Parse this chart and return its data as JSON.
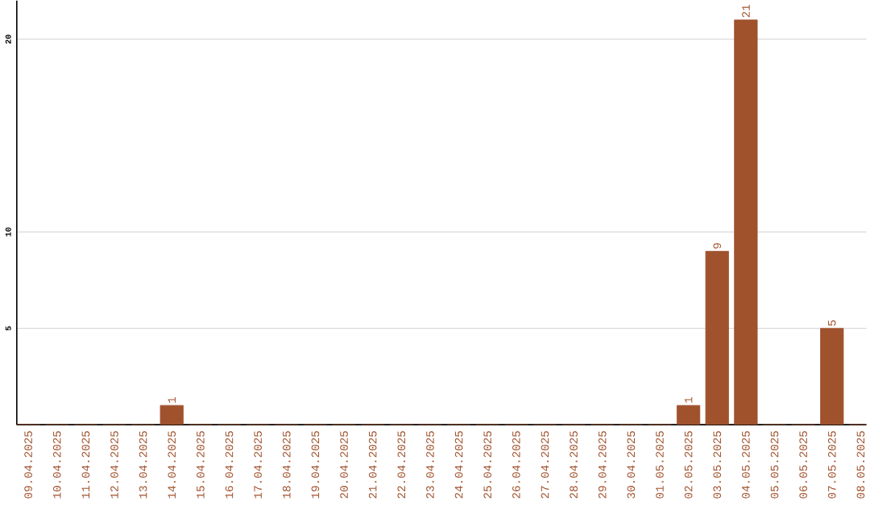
{
  "chart_data": {
    "type": "bar",
    "categories": [
      "09.04.2025",
      "10.04.2025",
      "11.04.2025",
      "12.04.2025",
      "13.04.2025",
      "14.04.2025",
      "15.04.2025",
      "16.04.2025",
      "17.04.2025",
      "18.04.2025",
      "19.04.2025",
      "20.04.2025",
      "21.04.2025",
      "22.04.2025",
      "23.04.2025",
      "24.04.2025",
      "25.04.2025",
      "26.04.2025",
      "27.04.2025",
      "28.04.2025",
      "29.04.2025",
      "30.04.2025",
      "01.05.2025",
      "02.05.2025",
      "03.05.2025",
      "04.05.2025",
      "05.05.2025",
      "06.05.2025",
      "07.05.2025",
      "08.05.2025"
    ],
    "values": [
      0,
      0,
      0,
      0,
      0,
      1,
      0,
      0,
      0,
      0,
      0,
      0,
      0,
      0,
      0,
      0,
      0,
      0,
      0,
      0,
      0,
      0,
      0,
      1,
      9,
      21,
      0,
      0,
      5,
      0
    ],
    "value_labels": [
      null,
      null,
      null,
      null,
      null,
      "1",
      null,
      null,
      null,
      null,
      null,
      null,
      null,
      null,
      null,
      null,
      null,
      null,
      null,
      null,
      null,
      null,
      null,
      "1",
      "9",
      "21",
      null,
      null,
      "5",
      null
    ],
    "color": "#a0522d",
    "ylim": [
      0,
      22
    ],
    "yticks": [
      5,
      10,
      20
    ],
    "grid": "y"
  }
}
